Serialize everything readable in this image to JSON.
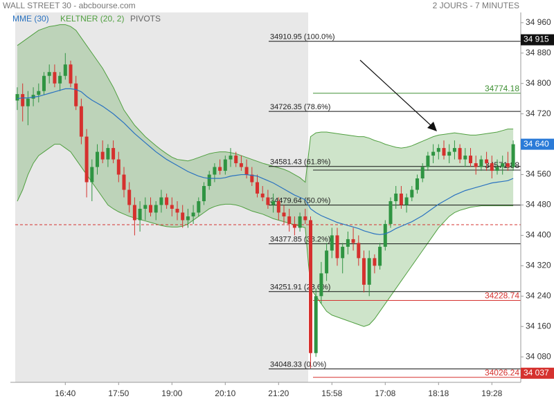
{
  "header": {
    "title": "WALL STREET 30 - abcbourse.com",
    "period": "2 JOURS - 7 MINUTES"
  },
  "chart_data": {
    "type": "candlestick",
    "categories": [
      null,
      null,
      null,
      null,
      null,
      null,
      null,
      null,
      null,
      "16:40",
      null,
      null,
      null,
      null,
      null,
      null,
      null,
      null,
      null,
      "17:50",
      null,
      null,
      null,
      null,
      null,
      null,
      null,
      null,
      null,
      "19:00",
      null,
      null,
      null,
      null,
      null,
      null,
      null,
      null,
      null,
      "20:10",
      null,
      null,
      null,
      null,
      null,
      null,
      null,
      null,
      null,
      "21:20",
      null,
      null,
      null,
      null,
      null,
      null,
      null,
      null,
      null,
      "15:58",
      null,
      null,
      null,
      null,
      null,
      null,
      null,
      null,
      null,
      "17:08",
      null,
      null,
      null,
      null,
      null,
      null,
      null,
      null,
      null,
      "18:18",
      null,
      null,
      null,
      null,
      null,
      null,
      null,
      null,
      null,
      "19:28",
      null,
      null,
      null,
      null
    ],
    "open": [
      34755,
      34772,
      34740,
      34760,
      34770,
      34780,
      34820,
      34830,
      34800,
      34820,
      34850,
      34800,
      34740,
      34660,
      34540,
      34580,
      34620,
      34600,
      34630,
      34600,
      34560,
      34520,
      34480,
      34440,
      34470,
      34480,
      34460,
      34480,
      34500,
      34480,
      34470,
      34460,
      34440,
      34450,
      34460,
      34490,
      34530,
      34560,
      34580,
      34570,
      34600,
      34610,
      34590,
      34580,
      34560,
      34540,
      34510,
      34500,
      34480,
      34490,
      34460,
      34450,
      34430,
      34420,
      34450,
      34440,
      34090,
      34240,
      34300,
      34360,
      34400,
      34340,
      34370,
      34390,
      34380,
      34340,
      34270,
      34340,
      34320,
      34370,
      34430,
      34490,
      34510,
      34480,
      34500,
      34520,
      34550,
      34580,
      34610,
      34620,
      34630,
      34610,
      34620,
      34630,
      34600,
      34610,
      34590,
      34580,
      34600,
      34590,
      34570,
      34580,
      34590,
      34580
    ],
    "high": [
      34790,
      34800,
      34780,
      34790,
      34800,
      34830,
      34850,
      34850,
      34830,
      34880,
      34860,
      34820,
      34760,
      34680,
      34600,
      34640,
      34650,
      34640,
      34650,
      34620,
      34580,
      34540,
      34500,
      34490,
      34500,
      34500,
      34490,
      34520,
      34510,
      34500,
      34490,
      34480,
      34470,
      34480,
      34500,
      34540,
      34570,
      34590,
      34600,
      34610,
      34630,
      34620,
      34610,
      34600,
      34580,
      34560,
      34530,
      34520,
      34510,
      34500,
      34480,
      34470,
      34450,
      34460,
      34470,
      34450,
      34260,
      34330,
      34380,
      34420,
      34420,
      34380,
      34410,
      34420,
      34400,
      34360,
      34360,
      34350,
      34380,
      34440,
      34500,
      34530,
      34530,
      34510,
      34530,
      34560,
      34590,
      34620,
      34640,
      34640,
      34650,
      34640,
      34650,
      34640,
      34630,
      34630,
      34610,
      34610,
      34620,
      34610,
      34600,
      34610,
      34620,
      34650
    ],
    "low": [
      34730,
      34700,
      34690,
      34740,
      34750,
      34770,
      34800,
      34790,
      34780,
      34810,
      34790,
      34730,
      34640,
      34500,
      34490,
      34560,
      34590,
      34580,
      34590,
      34540,
      34500,
      34460,
      34400,
      34410,
      34440,
      34450,
      34440,
      34460,
      34470,
      34450,
      34440,
      34420,
      34420,
      34430,
      34450,
      34480,
      34520,
      34540,
      34560,
      34560,
      34580,
      34580,
      34570,
      34550,
      34530,
      34500,
      34490,
      34470,
      34460,
      34440,
      34430,
      34410,
      34400,
      34410,
      34430,
      34050,
      34080,
      34220,
      34280,
      34340,
      34320,
      34300,
      34350,
      34360,
      34320,
      34250,
      34240,
      34300,
      34310,
      34360,
      34420,
      34470,
      34470,
      34460,
      34490,
      34510,
      34540,
      34570,
      34590,
      34600,
      34600,
      34590,
      34600,
      34590,
      34580,
      34580,
      34560,
      34570,
      34570,
      34550,
      34560,
      34560,
      34570,
      34570
    ],
    "close": [
      34772,
      34740,
      34760,
      34770,
      34780,
      34820,
      34830,
      34800,
      34820,
      34850,
      34800,
      34740,
      34660,
      34540,
      34580,
      34620,
      34600,
      34630,
      34600,
      34560,
      34520,
      34480,
      34440,
      34470,
      34480,
      34460,
      34480,
      34500,
      34480,
      34470,
      34460,
      34440,
      34450,
      34460,
      34490,
      34530,
      34560,
      34580,
      34570,
      34600,
      34610,
      34590,
      34580,
      34560,
      34540,
      34510,
      34500,
      34480,
      34490,
      34460,
      34450,
      34430,
      34420,
      34450,
      34440,
      34090,
      34240,
      34300,
      34360,
      34400,
      34340,
      34370,
      34390,
      34380,
      34340,
      34270,
      34340,
      34320,
      34370,
      34430,
      34490,
      34510,
      34480,
      34500,
      34520,
      34550,
      34580,
      34610,
      34620,
      34630,
      34610,
      34620,
      34630,
      34600,
      34610,
      34590,
      34580,
      34600,
      34590,
      34570,
      34580,
      34590,
      34580,
      34640
    ],
    "up_color": "#2f9442",
    "down_color": "#d5312e",
    "series": [
      {
        "name": "MME (30)",
        "color": "#2a72c0",
        "values": [
          34760,
          34762,
          34762,
          34764,
          34766,
          34770,
          34774,
          34778,
          34782,
          34786,
          34786,
          34784,
          34778,
          34766,
          34756,
          34748,
          34740,
          34730,
          34720,
          34708,
          34696,
          34682,
          34668,
          34656,
          34644,
          34632,
          34620,
          34610,
          34600,
          34592,
          34584,
          34576,
          34568,
          34562,
          34556,
          34552,
          34550,
          34550,
          34550,
          34552,
          34556,
          34558,
          34560,
          34560,
          34558,
          34556,
          34550,
          34544,
          34538,
          34530,
          34522,
          34514,
          34506,
          34500,
          34494,
          34470,
          34460,
          34452,
          34446,
          34440,
          34434,
          34430,
          34426,
          34422,
          34418,
          34412,
          34408,
          34404,
          34402,
          34404,
          34410,
          34418,
          34424,
          34430,
          34436,
          34444,
          34452,
          34462,
          34472,
          34482,
          34490,
          34498,
          34506,
          34512,
          34518,
          34522,
          34526,
          34530,
          34534,
          34538,
          34540,
          34542,
          34544,
          34550
        ]
      }
    ],
    "keltner": {
      "name": "KELTNER (20, 2)",
      "color": "#4f9f3f",
      "upper": [
        34900,
        34910,
        34920,
        34930,
        34940,
        34945,
        34950,
        34952,
        34955,
        34955,
        34950,
        34940,
        34920,
        34900,
        34880,
        34860,
        34840,
        34815,
        34790,
        34760,
        34730,
        34710,
        34690,
        34675,
        34660,
        34648,
        34636,
        34625,
        34615,
        34606,
        34600,
        34598,
        34596,
        34600,
        34605,
        34610,
        34615,
        34618,
        34620,
        34620,
        34618,
        34615,
        34610,
        34605,
        34600,
        34595,
        34590,
        34586,
        34582,
        34578,
        34574,
        34568,
        34560,
        34552,
        34540,
        34660,
        34670,
        34672,
        34672,
        34670,
        34668,
        34666,
        34664,
        34662,
        34660,
        34660,
        34656,
        34650,
        34646,
        34640,
        34636,
        34632,
        34630,
        34632,
        34636,
        34642,
        34648,
        34654,
        34660,
        34664,
        34666,
        34668,
        34670,
        34668,
        34666,
        34664,
        34664,
        34666,
        34668,
        34670,
        34672,
        34676,
        34680,
        34680
      ],
      "lower": [
        34490,
        34520,
        34560,
        34590,
        34610,
        34620,
        34630,
        34640,
        34640,
        34630,
        34620,
        34600,
        34580,
        34560,
        34540,
        34520,
        34500,
        34480,
        34470,
        34462,
        34456,
        34450,
        34446,
        34442,
        34438,
        34434,
        34430,
        34426,
        34423,
        34422,
        34422,
        34424,
        34430,
        34440,
        34450,
        34460,
        34470,
        34476,
        34480,
        34482,
        34482,
        34480,
        34476,
        34470,
        34464,
        34460,
        34456,
        34450,
        34444,
        34440,
        34436,
        34432,
        34428,
        34424,
        34420,
        34260,
        34240,
        34220,
        34200,
        34190,
        34185,
        34180,
        34175,
        34170,
        34165,
        34160,
        34165,
        34180,
        34200,
        34220,
        34240,
        34260,
        34280,
        34300,
        34320,
        34340,
        34360,
        34380,
        34400,
        34420,
        34435,
        34450,
        34460,
        34466,
        34470,
        34474,
        34476,
        34478,
        34478,
        34478,
        34478,
        34478,
        34478,
        34478
      ]
    },
    "pivots": "PIVOTS",
    "ylim": [
      34013,
      34987
    ],
    "yticks": [
      {
        "value": 34080,
        "label": "34 080"
      },
      {
        "value": 34160,
        "label": "34 160"
      },
      {
        "value": 34240,
        "label": "34 240"
      },
      {
        "value": 34320,
        "label": "34 320"
      },
      {
        "value": 34400,
        "label": "34 400"
      },
      {
        "value": 34480,
        "label": "34 480"
      },
      {
        "value": 34560,
        "label": "34 560"
      },
      {
        "value": 34640,
        "label": "34 640"
      },
      {
        "value": 34720,
        "label": "34 720"
      },
      {
        "value": 34800,
        "label": "34 800"
      },
      {
        "value": 34880,
        "label": "34 880"
      },
      {
        "value": 34960,
        "label": "34 960"
      }
    ],
    "fibonacci": [
      {
        "value": 34910.95,
        "label": "34910.95 (100.0%)"
      },
      {
        "value": 34726.35,
        "label": "34726.35 (78.6%)"
      },
      {
        "value": 34581.43,
        "label": "34581.43 (61.8%)"
      },
      {
        "value": 34479.64,
        "label": "34479.64 (50.0%)"
      },
      {
        "value": 34377.85,
        "label": "34377.85 (38.2%)"
      },
      {
        "value": 34251.91,
        "label": "34251.91 (23.6%)"
      },
      {
        "value": 34048.33,
        "label": "34048.33 (0.0%)"
      }
    ],
    "levels": [
      {
        "value": 34774.18,
        "label": "34774.18",
        "color": "#3d8f32"
      },
      {
        "value": 34571.88,
        "label": "34571.88",
        "color": "#222222"
      },
      {
        "value": 34228.74,
        "label": "34228.74",
        "color": "#d5312e"
      },
      {
        "value": 34026.24,
        "label": "34026.24",
        "color": "#d5312e"
      }
    ],
    "price_markers": [
      {
        "value": 34915,
        "label": "34 915",
        "color": "#111111"
      },
      {
        "value": 34640,
        "label": "34 640",
        "color": "#2b7bd8"
      },
      {
        "value": 34037,
        "label": "34 037",
        "color": "#d5312e"
      }
    ],
    "reference_line": {
      "value": 34428,
      "color": "#d5312e"
    }
  }
}
